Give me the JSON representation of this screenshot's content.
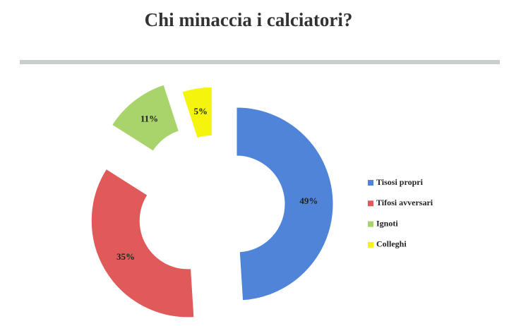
{
  "chart_data": {
    "type": "pie",
    "title": "Chi minaccia i calciatori?",
    "categories": [
      "Tisosi propri",
      "Tifosi avversari",
      "Ignoti",
      "Colleghi"
    ],
    "values": [
      49,
      35,
      11,
      5
    ],
    "value_labels": [
      "49%",
      "35%",
      "11%",
      "5%"
    ],
    "colors": [
      "#4f84d8",
      "#e05a5a",
      "#a9d46b",
      "#f4f40c"
    ],
    "legend": "right"
  }
}
